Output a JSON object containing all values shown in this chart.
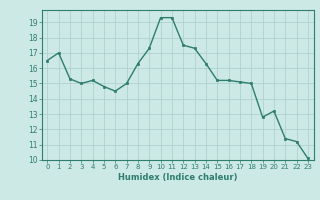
{
  "x": [
    0,
    1,
    2,
    3,
    4,
    5,
    6,
    7,
    8,
    9,
    10,
    11,
    12,
    13,
    14,
    15,
    16,
    17,
    18,
    19,
    20,
    21,
    22,
    23
  ],
  "y": [
    16.5,
    17.0,
    15.3,
    15.0,
    15.2,
    14.8,
    14.5,
    15.0,
    16.3,
    17.3,
    19.3,
    19.3,
    17.5,
    17.3,
    16.3,
    15.2,
    15.2,
    15.1,
    15.0,
    12.8,
    13.2,
    11.4,
    11.2,
    10.1
  ],
  "xlabel": "Humidex (Indice chaleur)",
  "ylim": [
    10,
    19.8
  ],
  "xlim": [
    -0.5,
    23.5
  ],
  "yticks": [
    10,
    11,
    12,
    13,
    14,
    15,
    16,
    17,
    18,
    19
  ],
  "xticks": [
    0,
    1,
    2,
    3,
    4,
    5,
    6,
    7,
    8,
    9,
    10,
    11,
    12,
    13,
    14,
    15,
    16,
    17,
    18,
    19,
    20,
    21,
    22,
    23
  ],
  "line_color": "#2e7d6e",
  "marker_color": "#2e7d6e",
  "bg_color": "#cce9e5",
  "grid_color": "#aacfcb",
  "axis_color": "#2e7d6e",
  "tick_color": "#2e7d6e",
  "label_color": "#2e7d6e"
}
